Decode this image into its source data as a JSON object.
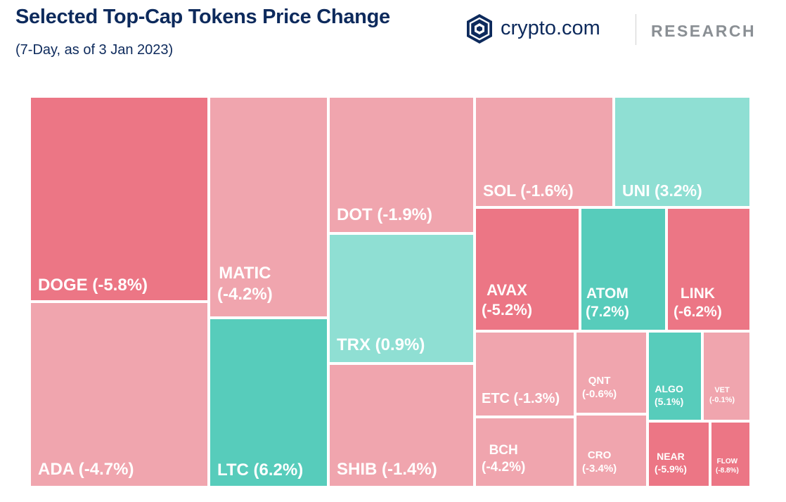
{
  "header": {
    "title": "Selected Top-Cap Tokens Price Change",
    "subtitle": "(7-Day, as of 3 Jan 2023)"
  },
  "logo": {
    "brand": "crypto.com",
    "section": "RESEARCH"
  },
  "colors": {
    "strong_negative": "#ec7685",
    "negative": "#f0a5ae",
    "positive": "#8fdfd3",
    "strong_positive": "#57ccbb",
    "navy": "#0d2a5c"
  },
  "chart_data": {
    "type": "treemap",
    "title": "Selected Top-Cap Tokens Price Change",
    "subtitle": "(7-Day, as of 3 Jan 2023)",
    "unit": "%",
    "tiles": [
      {
        "token": "DOGE",
        "change": -5.8,
        "label": "DOGE (-5.8%)"
      },
      {
        "token": "ADA",
        "change": -4.7,
        "label": "ADA (-4.7%)"
      },
      {
        "token": "MATIC",
        "change": -4.2,
        "label": "MATIC",
        "label2": "(-4.2%)"
      },
      {
        "token": "LTC",
        "change": 6.2,
        "label": "LTC (6.2%)"
      },
      {
        "token": "DOT",
        "change": -1.9,
        "label": "DOT (-1.9%)"
      },
      {
        "token": "TRX",
        "change": 0.9,
        "label": "TRX (0.9%)"
      },
      {
        "token": "SHIB",
        "change": -1.4,
        "label": "SHIB (-1.4%)"
      },
      {
        "token": "SOL",
        "change": -1.6,
        "label": "SOL (-1.6%)"
      },
      {
        "token": "UNI",
        "change": 3.2,
        "label": "UNI (3.2%)"
      },
      {
        "token": "AVAX",
        "change": -5.2,
        "label": "AVAX",
        "label2": "(-5.2%)"
      },
      {
        "token": "ATOM",
        "change": 7.2,
        "label": "ATOM",
        "label2": "(7.2%)"
      },
      {
        "token": "LINK",
        "change": -6.2,
        "label": "LINK",
        "label2": "(-6.2%)"
      },
      {
        "token": "ETC",
        "change": -1.3,
        "label": "ETC (-1.3%)"
      },
      {
        "token": "QNT",
        "change": -0.6,
        "label": "QNT",
        "label2": "(-0.6%)"
      },
      {
        "token": "ALGO",
        "change": 5.1,
        "label": "ALGO",
        "label2": "(5.1%)"
      },
      {
        "token": "VET",
        "change": -0.1,
        "label": "VET",
        "label2": "(-0.1%)"
      },
      {
        "token": "BCH",
        "change": -4.2,
        "label": "BCH",
        "label2": "(-4.2%)"
      },
      {
        "token": "CRO",
        "change": -3.4,
        "label": "CRO",
        "label2": "(-3.4%)"
      },
      {
        "token": "NEAR",
        "change": -5.9,
        "label": "NEAR",
        "label2": "(-5.9%)"
      },
      {
        "token": "FLOW",
        "change": -8.8,
        "label": "FLOW",
        "label2": "(-8.8%)"
      }
    ]
  }
}
